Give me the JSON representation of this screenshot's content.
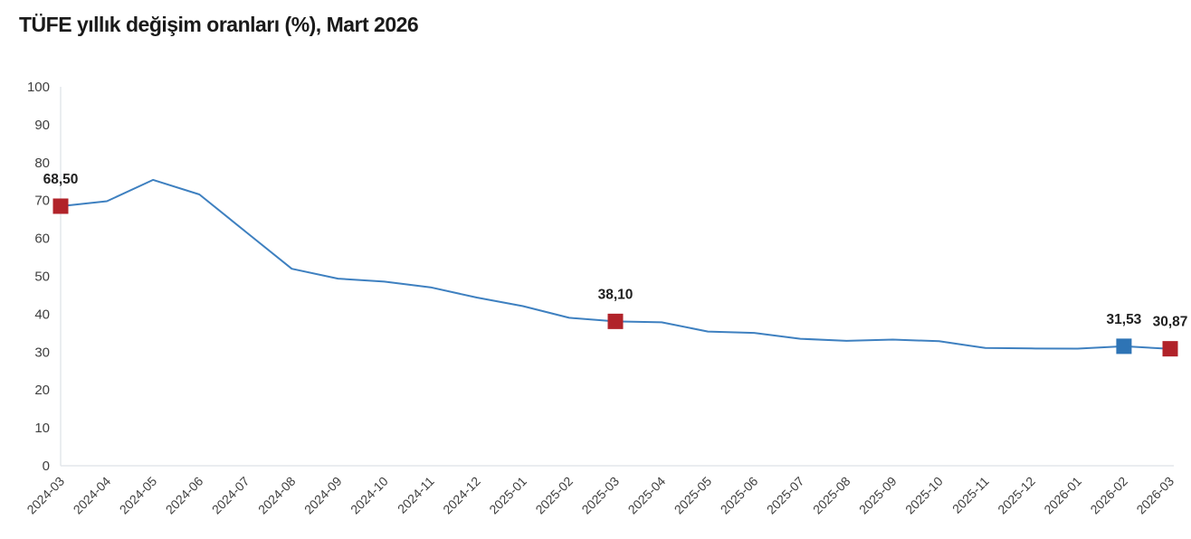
{
  "page": {
    "title": "TÜFE yıllık değişim oranları (%), Mart 2026"
  },
  "chart_data": {
    "type": "line",
    "title": "TÜFE yıllık değişim oranları (%), Mart 2026",
    "xlabel": "",
    "ylabel": "",
    "categories": [
      "2024-03",
      "2024-04",
      "2024-05",
      "2024-06",
      "2024-07",
      "2024-08",
      "2024-09",
      "2024-10",
      "2024-11",
      "2024-12",
      "2025-01",
      "2025-02",
      "2025-03",
      "2025-04",
      "2025-05",
      "2025-06",
      "2025-07",
      "2025-08",
      "2025-09",
      "2025-10",
      "2025-11",
      "2025-12",
      "2026-01",
      "2026-02",
      "2026-03"
    ],
    "values": [
      68.5,
      69.8,
      75.45,
      71.6,
      61.78,
      51.97,
      49.38,
      48.58,
      47.09,
      44.38,
      42.12,
      39.05,
      38.1,
      37.86,
      35.41,
      35.05,
      33.52,
      32.95,
      33.29,
      32.87,
      31.07,
      30.95,
      30.9,
      31.53,
      30.87
    ],
    "ylim": [
      0,
      100
    ],
    "ytick_step": 10,
    "yticks": [
      0,
      10,
      20,
      30,
      40,
      50,
      60,
      70,
      80,
      90,
      100
    ],
    "grid": false,
    "legend": false,
    "line_color": "#3e80c0",
    "axis_color": "#e3e7eb",
    "tick_label_color": "#3f3f3f",
    "data_label_color": "#1f1f1f",
    "marker_colors": {
      "red": "#b1232a",
      "blue": "#2e74b5"
    },
    "markers": [
      {
        "index": 0,
        "category": "2024-03",
        "value": 68.5,
        "label": "68,50",
        "color": "#b1232a"
      },
      {
        "index": 12,
        "category": "2025-03",
        "value": 38.1,
        "label": "38,10",
        "color": "#b1232a"
      },
      {
        "index": 23,
        "category": "2026-02",
        "value": 31.53,
        "label": "31,53",
        "color": "#2e74b5"
      },
      {
        "index": 24,
        "category": "2026-03",
        "value": 30.87,
        "label": "30,87",
        "color": "#b1232a"
      }
    ]
  }
}
